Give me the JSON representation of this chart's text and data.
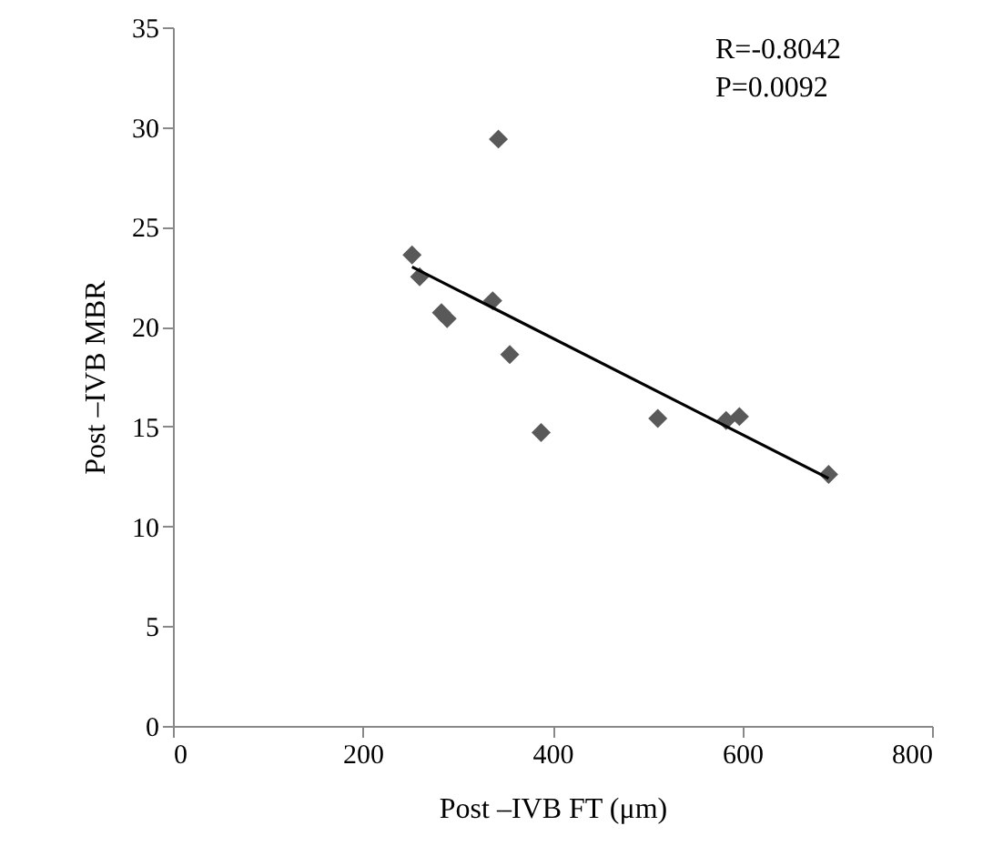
{
  "chart_data": {
    "type": "scatter",
    "xlabel": "Post –IVB FT (μm)",
    "ylabel": "Post –IVB MBR",
    "xlim": [
      0,
      800
    ],
    "xticks": [
      0,
      200,
      400,
      600,
      800
    ],
    "ylim": [
      0,
      35
    ],
    "yticks": [
      0,
      5,
      10,
      15,
      20,
      25,
      30,
      35
    ],
    "grid": false,
    "marker": "diamond",
    "annotations": [
      "R=-0.8042",
      "P=0.0092"
    ],
    "series": [
      {
        "color": "#595959",
        "x": [
          252,
          260,
          283,
          289,
          343,
          337,
          355,
          388,
          511,
          583,
          597,
          691
        ],
        "values": [
          23.6,
          22.5,
          20.7,
          20.4,
          29.4,
          21.3,
          18.6,
          14.7,
          15.4,
          15.3,
          15.5,
          12.6
        ]
      },
      {
        "type": "line",
        "color": "#000000",
        "line_style": "solid",
        "marker": "none",
        "x": [
          252,
          691
        ],
        "values": [
          23.0,
          12.4
        ]
      }
    ]
  }
}
